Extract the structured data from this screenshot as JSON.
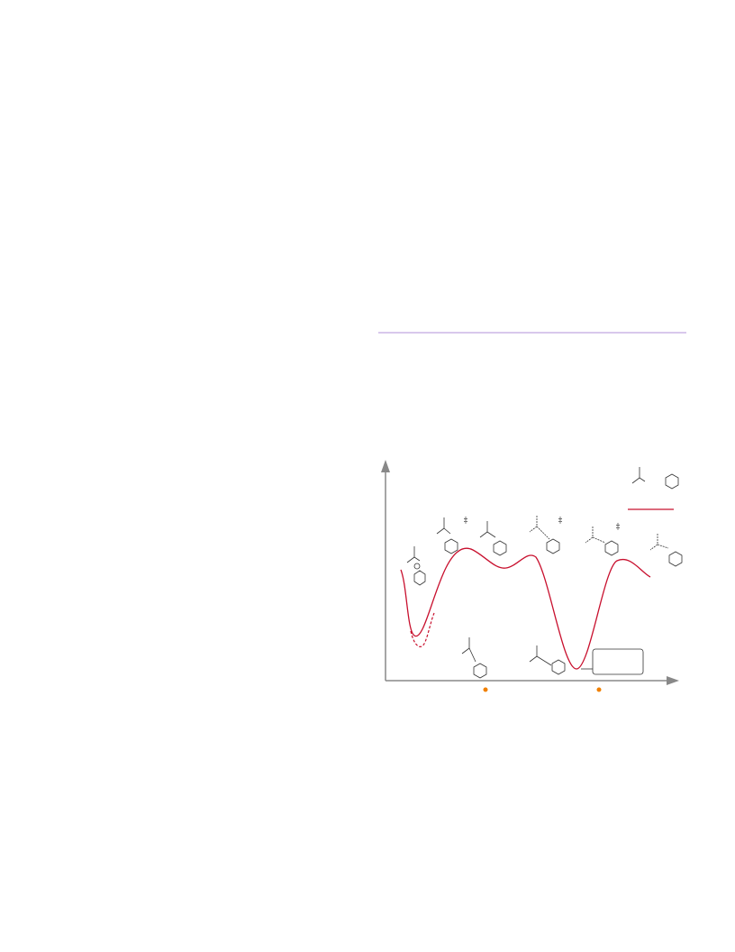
{
  "figure": {
    "ts_markers": [
      "‡",
      "‡",
      "‡"
    ]
  }
}
